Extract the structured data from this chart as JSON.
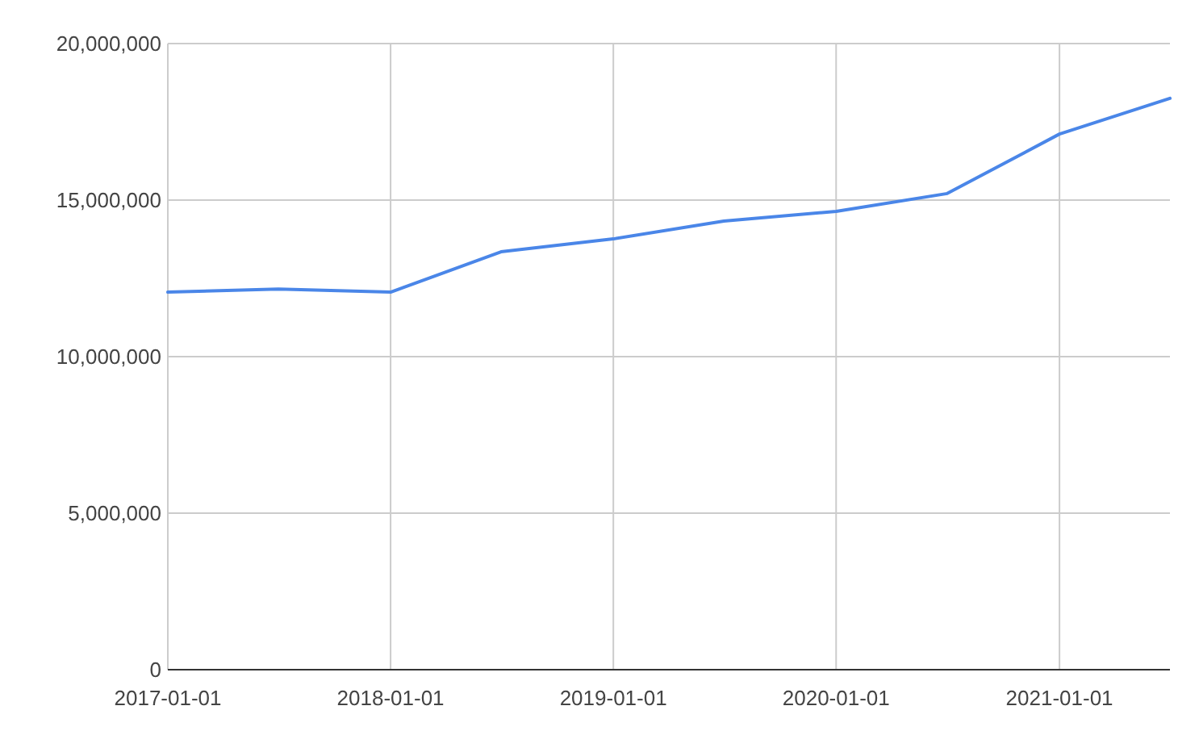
{
  "chart_data": {
    "type": "line",
    "x": [
      "2017-01-01",
      "2017-07-01",
      "2018-01-01",
      "2018-07-01",
      "2019-01-01",
      "2019-07-01",
      "2020-01-01",
      "2020-07-01",
      "2021-01-01",
      "2021-07-01"
    ],
    "series": [
      {
        "color": "#4a86e8",
        "values": [
          12060000,
          12160000,
          12060000,
          13350000,
          13760000,
          14330000,
          14640000,
          15210000,
          17110000,
          18250000
        ]
      }
    ],
    "xlim": [
      "2017-01-01",
      "2021-07-01"
    ],
    "xticks": [
      "2017-01-01",
      "2018-01-01",
      "2019-01-01",
      "2020-01-01",
      "2021-01-01"
    ],
    "ylim": [
      0,
      20000000
    ],
    "yticks": [
      {
        "value": 0,
        "label": "0"
      },
      {
        "value": 5000000,
        "label": "5,000,000"
      },
      {
        "value": 10000000,
        "label": "10,000,000"
      },
      {
        "value": 15000000,
        "label": "15,000,000"
      },
      {
        "value": 20000000,
        "label": "20,000,000"
      }
    ],
    "grid": true,
    "marker": "none",
    "line_style": "solid"
  }
}
